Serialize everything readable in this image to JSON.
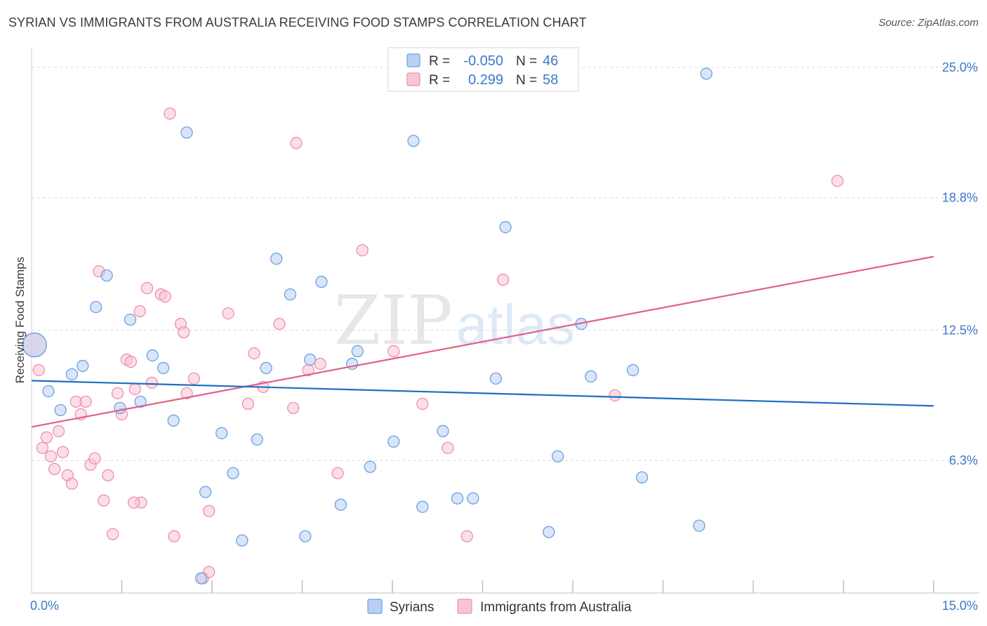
{
  "title": "SYRIAN VS IMMIGRANTS FROM AUSTRALIA RECEIVING FOOD STAMPS CORRELATION CHART",
  "source": "Source: ZipAtlas.com",
  "watermark": {
    "zip": "ZIP",
    "atlas": "atlas"
  },
  "colors": {
    "blue": "#6ea0e0",
    "blue_fill": "#b9d0f2",
    "blue_line": "#1f6cc4",
    "pink": "#ee8fab",
    "pink_fill": "#f8c5d4",
    "pink_line": "#e0608a",
    "axis_text": "#3b78c9",
    "grid": "#dcdcdc"
  },
  "legend_stats": [
    {
      "r_label": "R =",
      "r_value": "-0.050",
      "n_label": "N =",
      "n_value": "46",
      "color": "blue"
    },
    {
      "r_label": "R =",
      "r_value": "0.299",
      "n_label": "N =",
      "n_value": "58",
      "color": "pink"
    }
  ],
  "chart_data": {
    "type": "scatter",
    "title": "SYRIAN VS IMMIGRANTS FROM AUSTRALIA RECEIVING FOOD STAMPS CORRELATION CHART",
    "xlabel": "",
    "ylabel": "Receiving Food Stamps",
    "xlim": [
      0,
      15
    ],
    "ylim": [
      0,
      25.6
    ],
    "x_tick_labels": [
      "0.0%",
      "15.0%"
    ],
    "y_ticks": [
      6.3,
      12.5,
      18.8,
      25.0
    ],
    "y_tick_labels": [
      "6.3%",
      "12.5%",
      "18.8%",
      "25.0%"
    ],
    "x_minor_ticks": [
      1.5,
      3.0,
      4.5,
      6.0,
      7.5,
      9.0,
      10.5,
      12.0,
      13.5,
      15.0
    ],
    "grid": true,
    "legend_position": "bottom-center",
    "series": [
      {
        "name": "Syrians",
        "color": "blue",
        "trend": {
          "x": [
            0,
            15
          ],
          "y": [
            10.1,
            8.9
          ]
        },
        "points": [
          {
            "x": 0.05,
            "y": 11.8,
            "big": true
          },
          {
            "x": 0.28,
            "y": 9.6
          },
          {
            "x": 0.48,
            "y": 8.7
          },
          {
            "x": 0.67,
            "y": 10.4
          },
          {
            "x": 0.85,
            "y": 10.8
          },
          {
            "x": 1.07,
            "y": 13.6
          },
          {
            "x": 1.25,
            "y": 15.1
          },
          {
            "x": 1.47,
            "y": 8.8
          },
          {
            "x": 1.64,
            "y": 13.0
          },
          {
            "x": 1.81,
            "y": 9.1
          },
          {
            "x": 2.01,
            "y": 11.3
          },
          {
            "x": 2.19,
            "y": 10.7
          },
          {
            "x": 2.36,
            "y": 8.2
          },
          {
            "x": 2.58,
            "y": 21.9
          },
          {
            "x": 2.82,
            "y": 0.7
          },
          {
            "x": 2.89,
            "y": 4.8
          },
          {
            "x": 3.16,
            "y": 7.6
          },
          {
            "x": 3.35,
            "y": 5.7
          },
          {
            "x": 3.5,
            "y": 2.5
          },
          {
            "x": 3.75,
            "y": 7.3
          },
          {
            "x": 3.9,
            "y": 10.7
          },
          {
            "x": 4.07,
            "y": 15.9
          },
          {
            "x": 4.3,
            "y": 14.2
          },
          {
            "x": 4.55,
            "y": 2.7
          },
          {
            "x": 4.63,
            "y": 11.1
          },
          {
            "x": 4.82,
            "y": 14.8
          },
          {
            "x": 5.14,
            "y": 4.2
          },
          {
            "x": 5.33,
            "y": 10.9
          },
          {
            "x": 5.42,
            "y": 11.5
          },
          {
            "x": 5.63,
            "y": 6.0
          },
          {
            "x": 6.02,
            "y": 7.2
          },
          {
            "x": 6.35,
            "y": 21.5
          },
          {
            "x": 6.5,
            "y": 4.1
          },
          {
            "x": 6.84,
            "y": 7.7
          },
          {
            "x": 7.08,
            "y": 4.5
          },
          {
            "x": 7.34,
            "y": 4.5
          },
          {
            "x": 7.72,
            "y": 10.2
          },
          {
            "x": 7.88,
            "y": 17.4
          },
          {
            "x": 8.6,
            "y": 2.9
          },
          {
            "x": 8.75,
            "y": 6.5
          },
          {
            "x": 9.14,
            "y": 12.8
          },
          {
            "x": 9.3,
            "y": 10.3
          },
          {
            "x": 10.0,
            "y": 10.6
          },
          {
            "x": 10.15,
            "y": 5.5
          },
          {
            "x": 11.1,
            "y": 3.2
          },
          {
            "x": 11.22,
            "y": 24.7
          }
        ]
      },
      {
        "name": "Immigrants from Australia",
        "color": "pink",
        "trend": {
          "x": [
            0,
            15
          ],
          "y": [
            7.9,
            16.0
          ]
        },
        "points": [
          {
            "x": 0.05,
            "y": 11.8,
            "big": true
          },
          {
            "x": 0.12,
            "y": 10.6
          },
          {
            "x": 0.18,
            "y": 6.9
          },
          {
            "x": 0.25,
            "y": 7.4
          },
          {
            "x": 0.32,
            "y": 6.5
          },
          {
            "x": 0.38,
            "y": 5.9
          },
          {
            "x": 0.45,
            "y": 7.7
          },
          {
            "x": 0.52,
            "y": 6.7
          },
          {
            "x": 0.6,
            "y": 5.6
          },
          {
            "x": 0.67,
            "y": 5.2
          },
          {
            "x": 0.74,
            "y": 9.1
          },
          {
            "x": 0.82,
            "y": 8.5
          },
          {
            "x": 0.9,
            "y": 9.1
          },
          {
            "x": 0.98,
            "y": 6.1
          },
          {
            "x": 1.05,
            "y": 6.4
          },
          {
            "x": 1.12,
            "y": 15.3
          },
          {
            "x": 1.2,
            "y": 4.4
          },
          {
            "x": 1.27,
            "y": 5.6
          },
          {
            "x": 1.35,
            "y": 2.8
          },
          {
            "x": 1.43,
            "y": 9.5
          },
          {
            "x": 1.5,
            "y": 8.5
          },
          {
            "x": 1.58,
            "y": 11.1
          },
          {
            "x": 1.65,
            "y": 11.0
          },
          {
            "x": 1.72,
            "y": 9.7
          },
          {
            "x": 1.8,
            "y": 13.4
          },
          {
            "x": 1.92,
            "y": 14.5
          },
          {
            "x": 2.0,
            "y": 10.0
          },
          {
            "x": 2.15,
            "y": 14.2
          },
          {
            "x": 2.22,
            "y": 14.1
          },
          {
            "x": 2.3,
            "y": 22.8
          },
          {
            "x": 2.37,
            "y": 2.7
          },
          {
            "x": 2.48,
            "y": 12.8
          },
          {
            "x": 2.53,
            "y": 12.4
          },
          {
            "x": 2.58,
            "y": 9.5
          },
          {
            "x": 2.7,
            "y": 10.2
          },
          {
            "x": 2.85,
            "y": 0.7
          },
          {
            "x": 2.95,
            "y": 1.0
          },
          {
            "x": 3.27,
            "y": 13.3
          },
          {
            "x": 3.6,
            "y": 9.0
          },
          {
            "x": 3.7,
            "y": 11.4
          },
          {
            "x": 3.85,
            "y": 9.8
          },
          {
            "x": 4.12,
            "y": 12.8
          },
          {
            "x": 4.35,
            "y": 8.8
          },
          {
            "x": 4.4,
            "y": 21.4
          },
          {
            "x": 4.6,
            "y": 10.6
          },
          {
            "x": 4.8,
            "y": 10.9
          },
          {
            "x": 5.09,
            "y": 5.7
          },
          {
            "x": 5.5,
            "y": 16.3
          },
          {
            "x": 6.02,
            "y": 11.5
          },
          {
            "x": 6.5,
            "y": 9.0
          },
          {
            "x": 6.92,
            "y": 6.9
          },
          {
            "x": 7.24,
            "y": 2.7
          },
          {
            "x": 7.84,
            "y": 14.9
          },
          {
            "x": 9.7,
            "y": 9.4
          },
          {
            "x": 13.4,
            "y": 19.6
          },
          {
            "x": 2.95,
            "y": 3.9
          },
          {
            "x": 1.82,
            "y": 4.3
          },
          {
            "x": 1.7,
            "y": 4.3
          }
        ]
      }
    ]
  }
}
